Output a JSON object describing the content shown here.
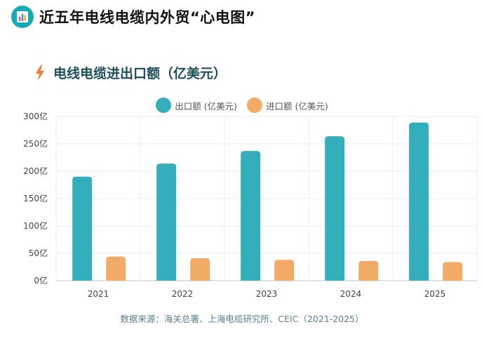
{
  "page_title": "近五年电线电缆内外贸“心电图”",
  "header_icon": "bar-chart-icon",
  "chart_icon": "lightning-icon",
  "chart_data": {
    "type": "bar",
    "title": "电线电缆进出口额（亿美元）",
    "categories": [
      "2021",
      "2022",
      "2023",
      "2024",
      "2025"
    ],
    "series": [
      {
        "name": "出口额 (亿美元)",
        "values": [
          190,
          214,
          237,
          264,
          289
        ],
        "color": "#35aebb"
      },
      {
        "name": "进口额 (亿美元)",
        "values": [
          44,
          41,
          38,
          36,
          34
        ],
        "color": "#f2ab66"
      }
    ],
    "yticks": [
      "0亿",
      "50亿",
      "100亿",
      "150亿",
      "200亿",
      "250亿",
      "300亿"
    ],
    "ylim": [
      0,
      300
    ],
    "grid": true,
    "legend_position": "top-center"
  },
  "source": "数据来源：海关总署、上海电缆研究所、CEIC（2021-2025）"
}
